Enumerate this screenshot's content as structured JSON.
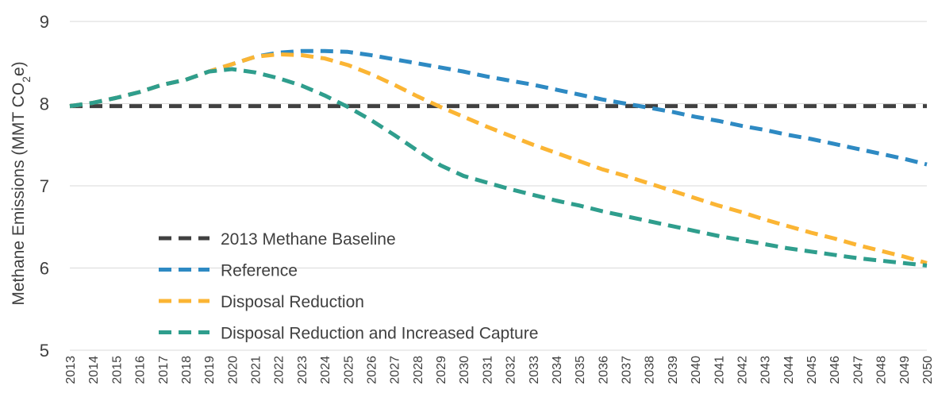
{
  "chart_data": {
    "type": "line",
    "title": "",
    "xlabel": "",
    "ylabel": "Methane Emissions (MMT CO2e)",
    "ylabel_parts": {
      "before": "Methane Emissions (MMT CO",
      "sub": "2",
      "after": "e)"
    },
    "ylim": [
      5,
      9
    ],
    "yticks": [
      5,
      6,
      7,
      8,
      9
    ],
    "grid": "horizontal",
    "legend_position": "bottom-left",
    "x": [
      2013,
      2014,
      2015,
      2016,
      2017,
      2018,
      2019,
      2020,
      2021,
      2022,
      2023,
      2024,
      2025,
      2026,
      2027,
      2028,
      2029,
      2030,
      2031,
      2032,
      2033,
      2034,
      2035,
      2036,
      2037,
      2038,
      2039,
      2040,
      2041,
      2042,
      2043,
      2044,
      2045,
      2046,
      2047,
      2048,
      2049,
      2050
    ],
    "series": [
      {
        "name": "2013 Methane Baseline",
        "color": "#404040",
        "values": [
          7.97,
          7.97,
          7.97,
          7.97,
          7.97,
          7.97,
          7.97,
          7.97,
          7.97,
          7.97,
          7.97,
          7.97,
          7.97,
          7.97,
          7.97,
          7.97,
          7.97,
          7.97,
          7.97,
          7.97,
          7.97,
          7.97,
          7.97,
          7.97,
          7.97,
          7.97,
          7.97,
          7.97,
          7.97,
          7.97,
          7.97,
          7.97,
          7.97,
          7.97,
          7.97,
          7.97,
          7.97,
          7.97
        ]
      },
      {
        "name": "Reference",
        "color": "#2e8ac3",
        "values": [
          7.97,
          8.01,
          8.07,
          8.14,
          8.23,
          8.29,
          8.39,
          8.48,
          8.57,
          8.62,
          8.64,
          8.64,
          8.63,
          8.59,
          8.54,
          8.49,
          8.44,
          8.39,
          8.33,
          8.28,
          8.23,
          8.17,
          8.11,
          8.05,
          8.0,
          7.95,
          7.9,
          7.84,
          7.79,
          7.73,
          7.68,
          7.62,
          7.57,
          7.51,
          7.45,
          7.39,
          7.33,
          7.26
        ]
      },
      {
        "name": "Disposal Reduction",
        "color": "#fbb534",
        "values": [
          7.97,
          8.01,
          8.07,
          8.14,
          8.23,
          8.29,
          8.39,
          8.48,
          8.57,
          8.6,
          8.59,
          8.55,
          8.47,
          8.36,
          8.23,
          8.09,
          7.96,
          7.84,
          7.72,
          7.61,
          7.5,
          7.4,
          7.3,
          7.2,
          7.12,
          7.03,
          6.94,
          6.85,
          6.76,
          6.68,
          6.59,
          6.51,
          6.43,
          6.36,
          6.28,
          6.21,
          6.14,
          6.06
        ]
      },
      {
        "name": "Disposal Reduction and Increased Capture",
        "color": "#2f9e8d",
        "values": [
          7.97,
          8.01,
          8.07,
          8.14,
          8.23,
          8.29,
          8.39,
          8.42,
          8.38,
          8.31,
          8.22,
          8.1,
          7.96,
          7.8,
          7.62,
          7.43,
          7.25,
          7.12,
          7.04,
          6.96,
          6.89,
          6.82,
          6.76,
          6.69,
          6.63,
          6.57,
          6.51,
          6.45,
          6.39,
          6.34,
          6.29,
          6.24,
          6.2,
          6.16,
          6.12,
          6.09,
          6.06,
          6.03
        ]
      }
    ]
  }
}
